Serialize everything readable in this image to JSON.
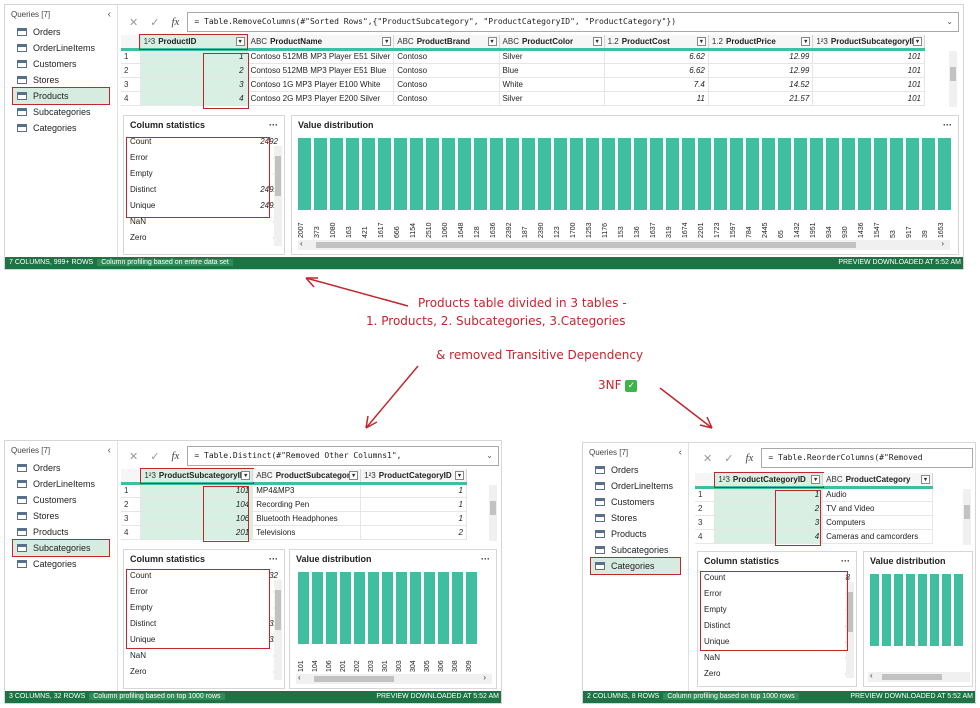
{
  "queries_header": "Queries [7]",
  "queries": [
    "Orders",
    "OrderLineItems",
    "Customers",
    "Stores",
    "Products",
    "Subcategories",
    "Categories"
  ],
  "top": {
    "formula": "= Table.RemoveColumns(#\"Sorted Rows\",{\"ProductSubcategory\", \"ProductCategoryID\", \"ProductCategory\"})",
    "columns": [
      {
        "type": "1²3",
        "name": "ProductID"
      },
      {
        "type": "ABC",
        "name": "ProductName"
      },
      {
        "type": "ABC",
        "name": "ProductBrand"
      },
      {
        "type": "ABC",
        "name": "ProductColor"
      },
      {
        "type": "1.2",
        "name": "ProductCost"
      },
      {
        "type": "1.2",
        "name": "ProductPrice"
      },
      {
        "type": "1²3",
        "name": "ProductSubcategoryID"
      }
    ],
    "rows": [
      [
        "1",
        "1",
        "Contoso 512MB MP3 Player E51 Silver",
        "Contoso",
        "Silver",
        "6.62",
        "12.99",
        "101"
      ],
      [
        "2",
        "2",
        "Contoso 512MB MP3 Player E51 Blue",
        "Contoso",
        "Blue",
        "6.62",
        "12.99",
        "101"
      ],
      [
        "3",
        "3",
        "Contoso 1G MP3 Player E100 White",
        "Contoso",
        "White",
        "7.4",
        "14.52",
        "101"
      ],
      [
        "4",
        "4",
        "Contoso 2G MP3 Player E200 Silver",
        "Contoso",
        "Silver",
        "11",
        "21.57",
        "101"
      ]
    ],
    "stats_title": "Column statistics",
    "stats": [
      [
        "Count",
        "2492"
      ],
      [
        "Error",
        "0"
      ],
      [
        "Empty",
        "0"
      ],
      [
        "Distinct",
        "2492"
      ],
      [
        "Unique",
        "2492"
      ],
      [
        "NaN",
        "0"
      ],
      [
        "Zero",
        "0"
      ]
    ],
    "dist_title": "Value distribution",
    "dist_labels": [
      "2007",
      "373",
      "1080",
      "163",
      "421",
      "1617",
      "666",
      "1154",
      "2510",
      "1060",
      "1648",
      "128",
      "1636",
      "2392",
      "187",
      "2390",
      "123",
      "1700",
      "1253",
      "1176",
      "153",
      "136",
      "1637",
      "319",
      "1674",
      "2201",
      "1723",
      "1597",
      "784",
      "2445",
      "65",
      "1432",
      "1951",
      "934",
      "930",
      "1436",
      "1547",
      "53",
      "917",
      "39",
      "1653"
    ],
    "status_left": "7 COLUMNS, 999+ ROWS",
    "status_prof": "Column profiling based on entire data set",
    "status_right": "PREVIEW DOWNLOADED AT 5:52 AM"
  },
  "annot": {
    "line1": "Products table divided in 3 tables -",
    "line2": "1. Products, 2. Subcategories, 3.Categories",
    "line3": "& removed Transitive Dependency",
    "nf": "3NF",
    "check": "✓"
  },
  "bl": {
    "formula": "= Table.Distinct(#\"Removed Other Columns1\",",
    "columns": [
      {
        "type": "1²3",
        "name": "ProductSubcategoryID"
      },
      {
        "type": "ABC",
        "name": "ProductSubcategory"
      },
      {
        "type": "1²3",
        "name": "ProductCategoryID"
      }
    ],
    "rows": [
      [
        "1",
        "101",
        "MP4&MP3",
        "1"
      ],
      [
        "2",
        "104",
        "Recording Pen",
        "1"
      ],
      [
        "3",
        "106",
        "Bluetooth Headphones",
        "1"
      ],
      [
        "4",
        "201",
        "Televisions",
        "2"
      ]
    ],
    "stats_title": "Column statistics",
    "stats": [
      [
        "Count",
        "32"
      ],
      [
        "Error",
        "0"
      ],
      [
        "Empty",
        "0"
      ],
      [
        "Distinct",
        "32"
      ],
      [
        "Unique",
        "32"
      ],
      [
        "NaN",
        "0"
      ],
      [
        "Zero",
        "0"
      ]
    ],
    "dist_title": "Value distribution",
    "dist_labels": [
      "101",
      "104",
      "106",
      "201",
      "202",
      "203",
      "301",
      "303",
      "304",
      "305",
      "306",
      "308",
      "309"
    ],
    "status_left": "3 COLUMNS, 32 ROWS",
    "status_prof": "Column profiling based on top 1000 rows",
    "status_right": "PREVIEW DOWNLOADED AT 5:52 AM"
  },
  "br": {
    "formula": "= Table.ReorderColumns(#\"Removed",
    "columns": [
      {
        "type": "1²3",
        "name": "ProductCategoryID"
      },
      {
        "type": "ABC",
        "name": "ProductCategory"
      }
    ],
    "rows": [
      [
        "1",
        "1",
        "Audio"
      ],
      [
        "2",
        "2",
        "TV and Video"
      ],
      [
        "3",
        "3",
        "Computers"
      ],
      [
        "4",
        "4",
        "Cameras and camcorders"
      ]
    ],
    "stats_title": "Column statistics",
    "stats": [
      [
        "Count",
        "8"
      ],
      [
        "Error",
        "0"
      ],
      [
        "Empty",
        "0"
      ],
      [
        "Distinct",
        "8"
      ],
      [
        "Unique",
        "8"
      ],
      [
        "NaN",
        "0"
      ],
      [
        "Zero",
        "0"
      ]
    ],
    "dist_title": "Value distribution",
    "dist_labels": [
      "1",
      "2",
      "3",
      "4",
      "5",
      "6",
      "7",
      "8"
    ],
    "status_left": "2 COLUMNS, 8 ROWS",
    "status_prof": "Column profiling based on top 1000 rows",
    "status_right": "PREVIEW DOWNLOADED AT 5:52 AM"
  }
}
